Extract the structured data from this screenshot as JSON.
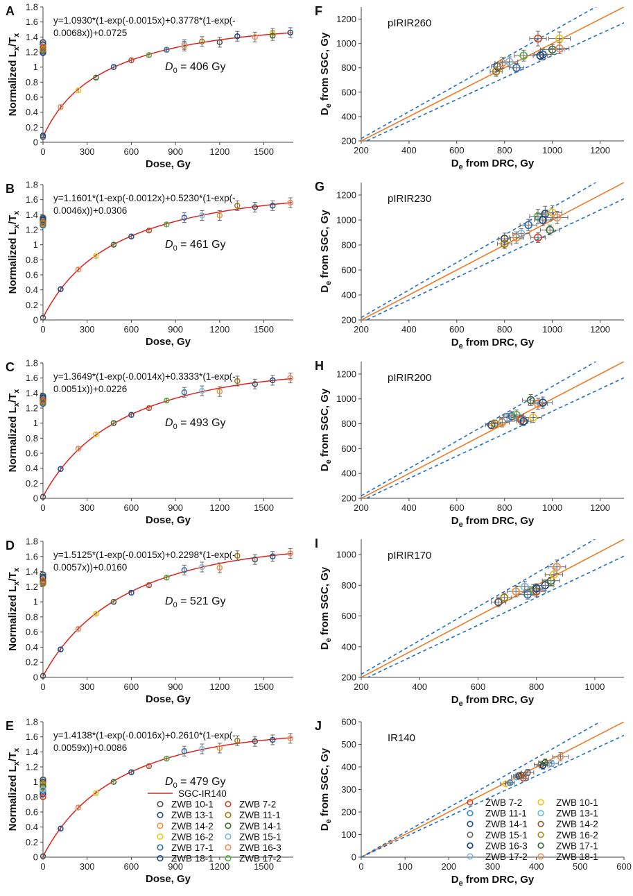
{
  "colors": {
    "curve": "#e0201b",
    "one_to_one": "#f07a24",
    "band": "#1f6fc5",
    "axis": "#444444",
    "errbar": "#666666",
    "samples": {
      "ZWB 7-2": "#c8472c",
      "ZWB 10-1": "#4e4e4e",
      "ZWB 11-1": "#a07a12",
      "ZWB 13-1": "#1d4f86",
      "ZWB 14-1": "#3c6e2a",
      "ZWB 14-2": "#f0923a",
      "ZWB 15-1": "#7eb8e6",
      "ZWB 16-2": "#f2c314",
      "ZWB 16-3": "#f08a58",
      "ZWB 17-1": "#2f6fb0",
      "ZWB 17-2": "#5aae3c",
      "ZWB 18-1": "#1a4a8e",
      "ZWB 10-1 (J)": "#f2c314",
      "ZWB 11-1 (J)": "#2f86d4",
      "ZWB 13-1 (J)": "#64b5e8",
      "ZWB 14-1 (J)": "#1d4f86",
      "ZWB 14-2 (J)": "#8a5a2a",
      "ZWB 15-1 (J)": "#6b6b6b",
      "ZWB 16-2 (J)": "#b8861a",
      "ZWB 16-3 (J)": "#0e3d7a",
      "ZWB 17-1 (J)": "#2e6b2a",
      "ZWB 17-2 (J)": "#7eb8e6",
      "ZWB 18-1 (J)": "#f08a58"
    }
  },
  "chart_data": [
    {
      "id": "A",
      "type": "scatter",
      "panel_label": "A",
      "xlabel": "Dose, Gy",
      "ylabel_main": "Normalized L",
      "ylabel_sub1": "x",
      "ylabel_mid": "/T",
      "ylabel_sub2": "x",
      "xlim": [
        0,
        1700
      ],
      "ylim": [
        0,
        1.8
      ],
      "xticks": [
        0,
        300,
        600,
        900,
        1200,
        1500
      ],
      "yticks": [
        0,
        0.2,
        0.4,
        0.6,
        0.8,
        1,
        1.2,
        1.4,
        1.6,
        1.8
      ],
      "ytick_labels": [
        "0",
        "0.2",
        "0.4",
        "0.6",
        "0.8",
        "1",
        "1.2",
        "1.4",
        "1.6",
        "1.8"
      ],
      "equation_line1": "y=1.0930*(1-exp(-0.0015x)+0.3778*(1-exp(-",
      "equation_line2": "0.0068x))+0.0725",
      "d0_symbol": "D",
      "d0_sub": "0",
      "d0_value": " = 406 Gy",
      "fit": {
        "a": 1.093,
        "b": 0.0015,
        "c": 0.3778,
        "d": 0.0068,
        "e": 0.0725
      },
      "points": [
        [
          0,
          0.07
        ],
        [
          0,
          0.09
        ],
        [
          120,
          0.47
        ],
        [
          240,
          0.69
        ],
        [
          360,
          0.86
        ],
        [
          480,
          1.0
        ],
        [
          600,
          1.09
        ],
        [
          720,
          1.16
        ],
        [
          840,
          1.23
        ],
        [
          960,
          1.3
        ],
        [
          960,
          1.28
        ],
        [
          1080,
          1.34
        ],
        [
          1200,
          1.33
        ],
        [
          1320,
          1.41
        ],
        [
          1440,
          1.4
        ],
        [
          1560,
          1.45
        ],
        [
          1560,
          1.42
        ],
        [
          1680,
          1.46
        ]
      ],
      "natural": [
        1.33,
        1.3,
        1.27,
        1.24,
        1.21,
        1.19,
        1.26,
        1.23
      ]
    },
    {
      "id": "B",
      "type": "scatter",
      "panel_label": "B",
      "xlabel": "Dose, Gy",
      "ylabel_main": "Normalized L",
      "ylabel_sub1": "x",
      "ylabel_mid": "/T",
      "ylabel_sub2": "x",
      "xlim": [
        0,
        1700
      ],
      "ylim": [
        0,
        1.8
      ],
      "xticks": [
        0,
        300,
        600,
        900,
        1200,
        1500
      ],
      "yticks": [
        0,
        0.2,
        0.4,
        0.6,
        0.8,
        1,
        1.2,
        1.4,
        1.6,
        1.8
      ],
      "ytick_labels": [
        "0",
        "0.2",
        "0.4",
        "0.6",
        "0.8",
        "1",
        "1.2",
        "1.4",
        "1.6",
        "1.8"
      ],
      "equation_line1": "y=1.1601*(1-exp(-0.0012x)+0.5230*(1-exp(-",
      "equation_line2": "0.0046x))+0.0306",
      "d0_symbol": "D",
      "d0_sub": "0",
      "d0_value": " = 461 Gy",
      "fit": {
        "a": 1.1601,
        "b": 0.0012,
        "c": 0.523,
        "d": 0.0046,
        "e": 0.0306
      },
      "points": [
        [
          0,
          0.03
        ],
        [
          120,
          0.41
        ],
        [
          240,
          0.67
        ],
        [
          360,
          0.85
        ],
        [
          480,
          1.0
        ],
        [
          600,
          1.11
        ],
        [
          720,
          1.19
        ],
        [
          840,
          1.27
        ],
        [
          960,
          1.36
        ],
        [
          1080,
          1.39
        ],
        [
          1200,
          1.39
        ],
        [
          1320,
          1.52
        ],
        [
          1440,
          1.5
        ],
        [
          1560,
          1.52
        ],
        [
          1680,
          1.56
        ]
      ],
      "natural": [
        1.36,
        1.34,
        1.31,
        1.28,
        1.26,
        1.33,
        1.3,
        1.29
      ]
    },
    {
      "id": "C",
      "type": "scatter",
      "panel_label": "C",
      "xlabel": "Dose, Gy",
      "ylabel_main": "Normalized L",
      "ylabel_sub1": "x",
      "ylabel_mid": "/T",
      "ylabel_sub2": "x",
      "xlim": [
        0,
        1700
      ],
      "ylim": [
        0,
        1.8
      ],
      "xticks": [
        0,
        300,
        600,
        900,
        1200,
        1500
      ],
      "yticks": [
        0,
        0.2,
        0.4,
        0.6,
        0.8,
        1,
        1.2,
        1.4,
        1.6,
        1.8
      ],
      "ytick_labels": [
        "0",
        "0.2",
        "0.4",
        "0.6",
        "0.8",
        "1",
        "1.2",
        "1.4",
        "1.6",
        "1.8"
      ],
      "equation_line1": "y=1.3649*(1-exp(-0.0014x)+0.3333*(1-exp(-",
      "equation_line2": "0.0051x))+0.0226",
      "d0_symbol": "D",
      "d0_sub": "0",
      "d0_value": " = 493 Gy",
      "fit": {
        "a": 1.3649,
        "b": 0.0014,
        "c": 0.3333,
        "d": 0.0051,
        "e": 0.0226
      },
      "points": [
        [
          0,
          0.02
        ],
        [
          120,
          0.39
        ],
        [
          240,
          0.66
        ],
        [
          360,
          0.85
        ],
        [
          480,
          1.0
        ],
        [
          600,
          1.11
        ],
        [
          720,
          1.2
        ],
        [
          840,
          1.3
        ],
        [
          960,
          1.41
        ],
        [
          1080,
          1.43
        ],
        [
          1200,
          1.42
        ],
        [
          1320,
          1.56
        ],
        [
          1440,
          1.52
        ],
        [
          1560,
          1.57
        ],
        [
          1680,
          1.6
        ]
      ],
      "natural": [
        1.36,
        1.34,
        1.31,
        1.29,
        1.26,
        1.33,
        1.3,
        1.28
      ]
    },
    {
      "id": "D",
      "type": "scatter",
      "panel_label": "D",
      "xlabel": "Dose, Gy",
      "ylabel_main": "Normalized L",
      "ylabel_sub1": "x",
      "ylabel_mid": "/T",
      "ylabel_sub2": "x",
      "xlim": [
        0,
        1700
      ],
      "ylim": [
        0,
        1.8
      ],
      "xticks": [
        0,
        300,
        600,
        900,
        1200,
        1500
      ],
      "yticks": [
        0,
        0.2,
        0.4,
        0.6,
        0.8,
        1,
        1.2,
        1.4,
        1.6,
        1.8
      ],
      "ytick_labels": [
        "0",
        "0.2",
        "0.4",
        "0.6",
        "0.8",
        "1",
        "1.2",
        "1.4",
        "1.6",
        "1.8"
      ],
      "equation_line1": "y=1.5125*(1-exp(-0.0015x)+0.2298*(1-exp(-",
      "equation_line2": "0.0057x))+0.0160",
      "d0_symbol": "D",
      "d0_sub": "0",
      "d0_value": " = 521 Gy",
      "fit": {
        "a": 1.5125,
        "b": 0.0015,
        "c": 0.2298,
        "d": 0.0057,
        "e": 0.016
      },
      "points": [
        [
          0,
          0.02
        ],
        [
          120,
          0.37
        ],
        [
          240,
          0.64
        ],
        [
          360,
          0.84
        ],
        [
          480,
          1.0
        ],
        [
          600,
          1.12
        ],
        [
          720,
          1.22
        ],
        [
          840,
          1.32
        ],
        [
          960,
          1.42
        ],
        [
          1080,
          1.46
        ],
        [
          1200,
          1.45
        ],
        [
          1320,
          1.61
        ],
        [
          1440,
          1.56
        ],
        [
          1560,
          1.6
        ],
        [
          1680,
          1.64
        ]
      ],
      "natural": [
        1.36,
        1.33,
        1.3,
        1.28,
        1.25,
        1.32,
        1.27,
        1.24
      ]
    },
    {
      "id": "E",
      "type": "scatter",
      "panel_label": "E",
      "xlabel": "Dose, Gy",
      "ylabel_main": "Normalized L",
      "ylabel_sub1": "x",
      "ylabel_mid": "/T",
      "ylabel_sub2": "x",
      "xlim": [
        0,
        1700
      ],
      "ylim": [
        0,
        1.8
      ],
      "xticks": [
        0,
        300,
        600,
        900,
        1200,
        1500
      ],
      "yticks": [
        0,
        0.2,
        0.4,
        0.6,
        0.8,
        1,
        1.2,
        1.4,
        1.6,
        1.8
      ],
      "ytick_labels": [
        "0",
        "0.2",
        "0.4",
        "0.6",
        "0.8",
        "1",
        "1.2",
        "1.4",
        "1.6",
        "1.8"
      ],
      "equation_line1": "y=1.4138*(1-exp(-0.0016x)+0.2610*(1-exp(-",
      "equation_line2": "0.0059x))+0.0086",
      "d0_symbol": "D",
      "d0_sub": "0",
      "d0_value": " = 479 Gy",
      "fit": {
        "a": 1.4138,
        "b": 0.0016,
        "c": 0.261,
        "d": 0.0059,
        "e": 0.0086
      },
      "points": [
        [
          0,
          0.01
        ],
        [
          120,
          0.38
        ],
        [
          240,
          0.66
        ],
        [
          360,
          0.85
        ],
        [
          480,
          1.0
        ],
        [
          600,
          1.13
        ],
        [
          720,
          1.21
        ],
        [
          840,
          1.31
        ],
        [
          960,
          1.41
        ],
        [
          1080,
          1.44
        ],
        [
          1200,
          1.45
        ],
        [
          1320,
          1.55
        ],
        [
          1440,
          1.54
        ],
        [
          1560,
          1.56
        ],
        [
          1680,
          1.58
        ]
      ],
      "natural": [
        1.03,
        1.0,
        0.96,
        0.92,
        0.88,
        0.84,
        0.8,
        0.98,
        0.94,
        0.9
      ],
      "legend_title": "SGC-IR140",
      "legend": [
        "ZWB 10-1",
        "ZWB 13-1",
        "ZWB 14-2",
        "ZWB 16-2",
        "ZWB 17-1",
        "ZWB 18-1",
        "ZWB 7-2",
        "ZWB 11-1",
        "ZWB 14-1",
        "ZWB 15-1",
        "ZWB 16-3",
        "ZWB 17-2"
      ]
    },
    {
      "id": "F",
      "type": "scatter",
      "panel_label": "F",
      "series_name": "pIRIR260",
      "xlabel_main": "D",
      "xlabel_sub": "e",
      "xlabel_rest": " from DRC, Gy",
      "ylabel_main": "D",
      "ylabel_sub": "e",
      "ylabel_rest": " from SGC, Gy",
      "xlim": [
        200,
        1300
      ],
      "ylim": [
        200,
        1300
      ],
      "xticks": [
        200,
        400,
        600,
        800,
        1000,
        1200
      ],
      "yticks": [
        200,
        400,
        600,
        800,
        1000,
        1200
      ],
      "band": 0.1,
      "points": [
        [
          770,
          810,
          25,
          35
        ],
        [
          765,
          770,
          25,
          40
        ],
        [
          790,
          840,
          30,
          45
        ],
        [
          820,
          850,
          35,
          40
        ],
        [
          850,
          800,
          30,
          35
        ],
        [
          880,
          900,
          40,
          45
        ],
        [
          940,
          1040,
          35,
          60
        ],
        [
          960,
          910,
          35,
          45
        ],
        [
          1000,
          950,
          50,
          40
        ],
        [
          1030,
          1040,
          45,
          55
        ],
        [
          1030,
          960,
          40,
          45
        ],
        [
          950,
          900,
          30,
          35
        ]
      ]
    },
    {
      "id": "G",
      "type": "scatter",
      "panel_label": "G",
      "series_name": "pIRIR230",
      "xlabel_main": "D",
      "xlabel_sub": "e",
      "xlabel_rest": " from DRC, Gy",
      "ylabel_main": "D",
      "ylabel_sub": "e",
      "ylabel_rest": " from SGC, Gy",
      "xlim": [
        200,
        1300
      ],
      "ylim": [
        200,
        1300
      ],
      "xticks": [
        200,
        400,
        600,
        800,
        1000,
        1200
      ],
      "yticks": [
        200,
        400,
        600,
        800,
        1000,
        1200
      ],
      "band": 0.1,
      "points": [
        [
          800,
          850,
          25,
          45
        ],
        [
          800,
          810,
          30,
          40
        ],
        [
          850,
          860,
          30,
          45
        ],
        [
          870,
          890,
          35,
          40
        ],
        [
          900,
          960,
          35,
          45
        ],
        [
          940,
          1030,
          35,
          55
        ],
        [
          940,
          860,
          30,
          40
        ],
        [
          970,
          1050,
          35,
          60
        ],
        [
          990,
          920,
          40,
          40
        ],
        [
          1000,
          1060,
          40,
          55
        ],
        [
          1020,
          1020,
          45,
          50
        ],
        [
          960,
          1000,
          35,
          45
        ]
      ]
    },
    {
      "id": "H",
      "type": "scatter",
      "panel_label": "H",
      "series_name": "pIRIR200",
      "xlabel_main": "D",
      "xlabel_sub": "e",
      "xlabel_rest": " from DRC, Gy",
      "ylabel_main": "D",
      "ylabel_sub": "e",
      "ylabel_rest": " from SGC, Gy",
      "xlim": [
        200,
        1300
      ],
      "ylim": [
        200,
        1300
      ],
      "xticks": [
        200,
        400,
        600,
        800,
        1000,
        1200
      ],
      "yticks": [
        200,
        400,
        600,
        800,
        1000,
        1200
      ],
      "band": 0.1,
      "points": [
        [
          745,
          790,
          25,
          30
        ],
        [
          760,
          800,
          25,
          30
        ],
        [
          790,
          810,
          30,
          35
        ],
        [
          810,
          850,
          30,
          35
        ],
        [
          830,
          860,
          35,
          40
        ],
        [
          850,
          870,
          30,
          40
        ],
        [
          870,
          830,
          30,
          35
        ],
        [
          880,
          820,
          30,
          35
        ],
        [
          910,
          990,
          35,
          45
        ],
        [
          920,
          850,
          35,
          40
        ],
        [
          940,
          960,
          40,
          45
        ],
        [
          960,
          970,
          40,
          45
        ]
      ]
    },
    {
      "id": "I",
      "type": "scatter",
      "panel_label": "I",
      "series_name": "pIRIR170",
      "xlabel_main": "D",
      "xlabel_sub": "e",
      "xlabel_rest": " from DRC, Gy",
      "ylabel_main": "D",
      "ylabel_sub": "e",
      "ylabel_rest": " from SGC, Gy",
      "xlim": [
        200,
        1100
      ],
      "ylim": [
        200,
        1100
      ],
      "xticks": [
        200,
        400,
        600,
        800,
        1000
      ],
      "yticks": [
        200,
        400,
        600,
        800,
        1000
      ],
      "band": 0.1,
      "points": [
        [
          670,
          690,
          25,
          30
        ],
        [
          690,
          720,
          25,
          30
        ],
        [
          730,
          760,
          30,
          35
        ],
        [
          760,
          790,
          30,
          35
        ],
        [
          770,
          740,
          30,
          30
        ],
        [
          790,
          770,
          30,
          35
        ],
        [
          800,
          760,
          30,
          35
        ],
        [
          830,
          800,
          30,
          35
        ],
        [
          850,
          830,
          30,
          35
        ],
        [
          860,
          870,
          30,
          40
        ],
        [
          870,
          920,
          30,
          45
        ],
        [
          800,
          780,
          25,
          30
        ]
      ]
    },
    {
      "id": "J",
      "type": "scatter",
      "panel_label": "J",
      "series_name": "IR140",
      "xlabel_main": "D",
      "xlabel_sub": "e",
      "xlabel_rest": " from DRC, Gy",
      "ylabel_main": "D",
      "ylabel_sub": "e",
      "ylabel_rest": " from SGC, Gy",
      "xlim": [
        0,
        600
      ],
      "ylim": [
        0,
        600
      ],
      "xticks": [
        0,
        100,
        200,
        300,
        400,
        500,
        600
      ],
      "yticks": [
        0,
        100,
        200,
        300,
        400,
        500,
        600
      ],
      "band": 0.1,
      "points": [
        [
          330,
          325,
          12,
          10
        ],
        [
          340,
          330,
          10,
          10
        ],
        [
          355,
          355,
          12,
          12
        ],
        [
          360,
          360,
          12,
          14
        ],
        [
          365,
          365,
          12,
          12
        ],
        [
          380,
          375,
          14,
          14
        ],
        [
          410,
          410,
          15,
          15
        ],
        [
          415,
          405,
          14,
          15
        ],
        [
          420,
          420,
          15,
          15
        ],
        [
          435,
          415,
          15,
          14
        ],
        [
          455,
          445,
          18,
          18
        ],
        [
          370,
          350,
          12,
          12
        ]
      ],
      "legend": [
        "ZWB 7-2",
        "ZWB 11-1",
        "ZWB 14-1",
        "ZWB 15-1",
        "ZWB 16-3",
        "ZWB 17-2",
        "ZWB 10-1",
        "ZWB 13-1",
        "ZWB 14-2",
        "ZWB 16-2",
        "ZWB 17-1",
        "ZWB 18-1"
      ]
    }
  ]
}
